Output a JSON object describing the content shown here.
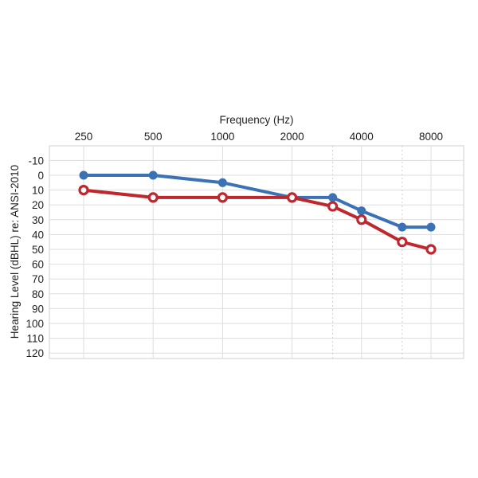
{
  "chart_data": {
    "type": "line",
    "title": "",
    "xlabel": "Frequency (Hz)",
    "ylabel": "Hearing Level (dBHL) re: ANSI-2010",
    "x_axis_position": "top",
    "y_axis_inverted": true,
    "x_scale": "log",
    "x_ticks": [
      250,
      500,
      1000,
      2000,
      4000,
      8000
    ],
    "x_tick_labels": [
      "250",
      "500",
      "1000",
      "2000",
      "4000",
      "8000"
    ],
    "x_intermediate_gridlines": [
      3000,
      6000
    ],
    "y_ticks": [
      -10,
      0,
      10,
      20,
      30,
      40,
      50,
      60,
      70,
      80,
      90,
      100,
      110,
      120
    ],
    "ylim": [
      -10,
      120
    ],
    "grid": true,
    "legend": "none",
    "series": [
      {
        "color": "#3a72b5",
        "marker": "filled-circle",
        "points": [
          [
            250,
            0
          ],
          [
            500,
            0
          ],
          [
            1000,
            5
          ],
          [
            2000,
            15
          ],
          [
            3000,
            15
          ],
          [
            4000,
            24
          ],
          [
            6000,
            35
          ],
          [
            8000,
            35
          ]
        ]
      },
      {
        "color": "#c0262d",
        "marker": "open-circle",
        "points": [
          [
            250,
            10
          ],
          [
            500,
            15
          ],
          [
            1000,
            15
          ],
          [
            2000,
            15
          ],
          [
            3000,
            21
          ],
          [
            4000,
            30
          ],
          [
            6000,
            45
          ],
          [
            8000,
            50
          ]
        ]
      }
    ]
  }
}
